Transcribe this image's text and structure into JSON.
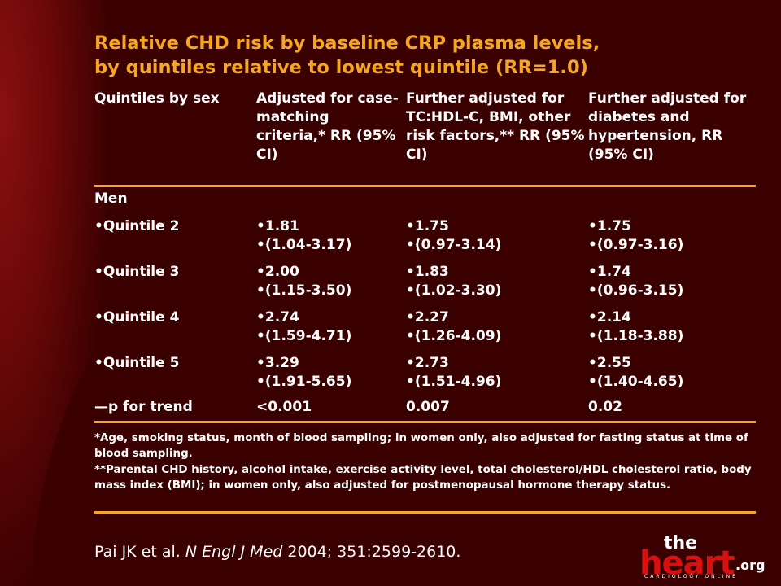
{
  "title_line1": "Relative CHD risk by baseline CRP plasma levels,",
  "title_line2": "by quintiles relative to lowest quintile (RR=1.0)",
  "headers": {
    "c1": "Quintiles by sex",
    "c2": "Adjusted for case-matching criteria,* RR (95% CI)",
    "c3": "Further adjusted for TC:HDL-C, BMI, other risk factors,** RR (95% CI)",
    "c4": "Further adjusted for diabetes and hypertension, RR (95% CI)"
  },
  "group_label": "Men",
  "rows": [
    {
      "label": "•Quintile 2",
      "c2a": "•1.81",
      "c2b": "•(1.04-3.17)",
      "c3a": "•1.75",
      "c3b": "•(0.97-3.14)",
      "c4a": "•1.75",
      "c4b": "•(0.97-3.16)"
    },
    {
      "label": "•Quintile 3",
      "c2a": "•2.00",
      "c2b": "•(1.15-3.50)",
      "c3a": "•1.83",
      "c3b": "•(1.02-3.30)",
      "c4a": "•1.74",
      "c4b": "•(0.96-3.15)"
    },
    {
      "label": "•Quintile 4",
      "c2a": "•2.74",
      "c2b": "•(1.59-4.71)",
      "c3a": "•2.27",
      "c3b": "•(1.26-4.09)",
      "c4a": "•2.14",
      "c4b": "•(1.18-3.88)"
    },
    {
      "label": "•Quintile 5",
      "c2a": "•3.29",
      "c2b": "•(1.91-5.65)",
      "c3a": "•2.73",
      "c3b": "•(1.51-4.96)",
      "c4a": "•2.55",
      "c4b": "•(1.40-4.65)"
    }
  ],
  "trend": {
    "label": "—p for trend",
    "c2": "<0.001",
    "c3": "0.007",
    "c4": "0.02"
  },
  "footnote1": "*Age, smoking status, month of blood sampling; in women only, also adjusted for fasting status at time of blood sampling.",
  "footnote2": "**Parental CHD history, alcohol intake, exercise activity level, total cholesterol/HDL cholesterol ratio, body mass index (BMI); in women only, also adjusted for postmenopausal hormone therapy status.",
  "citation": {
    "authors": "Pai JK et al. ",
    "journal": "N Engl J Med",
    "ref": " 2004; 351:2599-2610."
  },
  "logo": {
    "the": "the",
    "heart": "heart",
    "org": ".org",
    "tagline": "CARDIOLOGY ONLINE"
  },
  "colors": {
    "background": "#3a0000",
    "accent": "#f5a623",
    "logo_red": "#d81010"
  }
}
